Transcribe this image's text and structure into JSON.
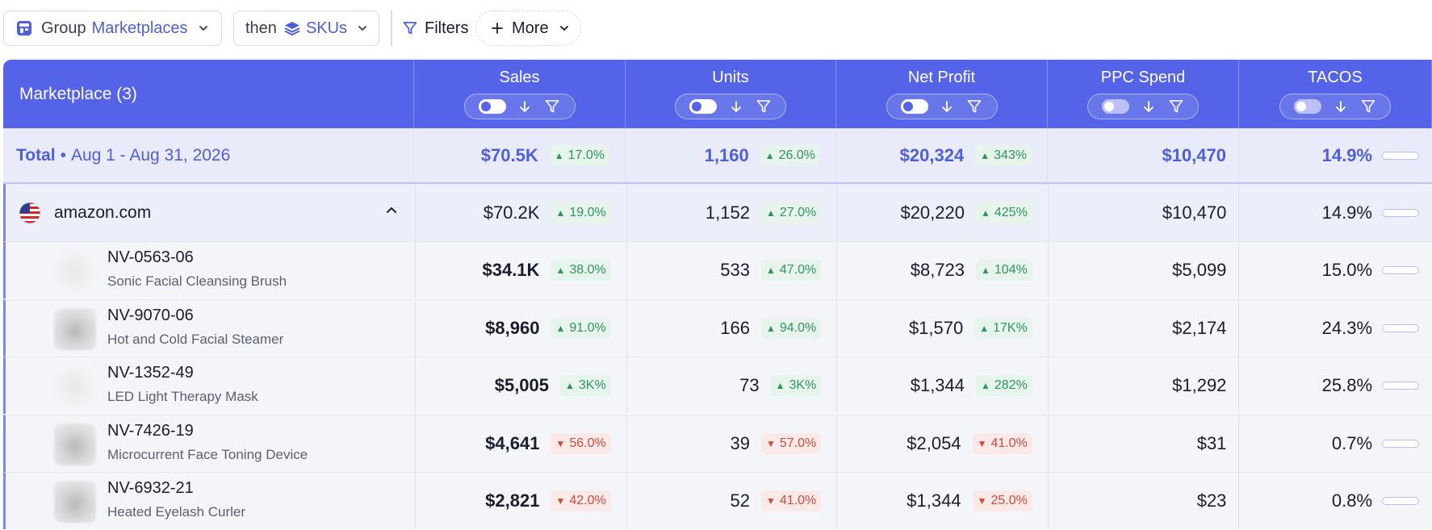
{
  "toolbar": {
    "group_label": "Group",
    "group_value": "Marketplaces",
    "then_label": "then",
    "then_value": "SKUs",
    "filters_label": "Filters",
    "more_label": "More"
  },
  "table": {
    "first_col_header": "Marketplace (3)",
    "columns": [
      {
        "label": "Sales",
        "toggle_on": true
      },
      {
        "label": "Units",
        "toggle_on": true
      },
      {
        "label": "Net Profit",
        "toggle_on": true
      },
      {
        "label": "PPC Spend",
        "toggle_on": false
      },
      {
        "label": "TACOS",
        "toggle_on": false
      }
    ],
    "total": {
      "label": "Total",
      "separator": "•",
      "range": "Aug 1 - Aug 31, 2026",
      "sales": "$70.5K",
      "sales_delta": "17.0%",
      "sales_dir": "up",
      "units": "1,160",
      "units_delta": "26.0%",
      "units_dir": "up",
      "profit": "$20,324",
      "profit_delta": "343%",
      "profit_dir": "up",
      "ppc": "$10,470",
      "tacos": "14.9%",
      "tacos_level": 0.3
    },
    "marketplace": {
      "name": "amazon.com",
      "flag_icon": "us-flag-icon",
      "sales": "$70.2K",
      "sales_delta": "19.0%",
      "sales_dir": "up",
      "units": "1,152",
      "units_delta": "27.0%",
      "units_dir": "up",
      "profit": "$20,220",
      "profit_delta": "425%",
      "profit_dir": "up",
      "ppc": "$10,470",
      "tacos": "14.9%",
      "tacos_level": 0.3
    },
    "skus": [
      {
        "code": "NV-0563-06",
        "name": "Sonic Facial Cleansing Brush",
        "sales": "$34.1K",
        "sales_delta": "38.0%",
        "sales_dir": "up",
        "units": "533",
        "units_delta": "47.0%",
        "units_dir": "up",
        "profit": "$8,723",
        "profit_delta": "104%",
        "profit_dir": "up",
        "ppc": "$5,099",
        "tacos": "15.0%",
        "tacos_level": 0.3,
        "thumb_dark": false
      },
      {
        "code": "NV-9070-06",
        "name": "Hot and Cold Facial Steamer",
        "sales": "$8,960",
        "sales_delta": "91.0%",
        "sales_dir": "up",
        "units": "166",
        "units_delta": "94.0%",
        "units_dir": "up",
        "profit": "$1,570",
        "profit_delta": "17K%",
        "profit_dir": "up",
        "ppc": "$2,174",
        "tacos": "24.3%",
        "tacos_level": 0.55,
        "thumb_dark": true
      },
      {
        "code": "NV-1352-49",
        "name": "LED Light Therapy Mask",
        "sales": "$5,005",
        "sales_delta": "3K%",
        "sales_dir": "up",
        "units": "73",
        "units_delta": "3K%",
        "units_dir": "up",
        "profit": "$1,344",
        "profit_delta": "282%",
        "profit_dir": "up",
        "ppc": "$1,292",
        "tacos": "25.8%",
        "tacos_level": 0.58,
        "thumb_dark": false
      },
      {
        "code": "NV-7426-19",
        "name": "Microcurrent Face Toning Device",
        "sales": "$4,641",
        "sales_delta": "56.0%",
        "sales_dir": "down",
        "units": "39",
        "units_delta": "57.0%",
        "units_dir": "down",
        "profit": "$2,054",
        "profit_delta": "41.0%",
        "profit_dir": "down",
        "ppc": "$31",
        "tacos": "0.7%",
        "tacos_level": 0.0,
        "thumb_dark": true
      },
      {
        "code": "NV-6932-21",
        "name": "Heated Eyelash Curler",
        "sales": "$2,821",
        "sales_delta": "42.0%",
        "sales_dir": "down",
        "units": "52",
        "units_delta": "41.0%",
        "units_dir": "down",
        "profit": "$1,344",
        "profit_delta": "25.0%",
        "profit_dir": "down",
        "ppc": "$23",
        "tacos": "0.8%",
        "tacos_level": 0.0,
        "thumb_dark": true
      }
    ]
  },
  "colors": {
    "accent": "#4f5fdc",
    "header_bg": "#5563e8",
    "up": "#2f9462",
    "down": "#d04a3c"
  }
}
